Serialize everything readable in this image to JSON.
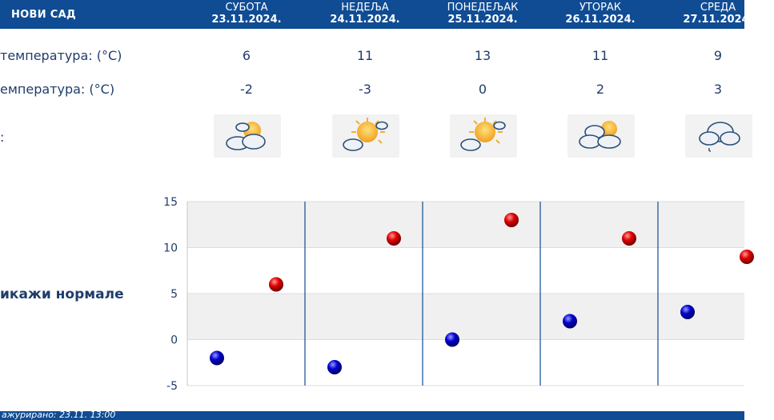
{
  "header": {
    "city": "НОВИ САД",
    "days": [
      {
        "name": "СУБОТА",
        "date": "23.11.2024."
      },
      {
        "name": "НЕДЕЉА",
        "date": "24.11.2024."
      },
      {
        "name": "ПОНЕДЕЉАК",
        "date": "25.11.2024."
      },
      {
        "name": "УТОРАК",
        "date": "26.11.2024."
      },
      {
        "name": "СРЕДА",
        "date": "27.11.2024."
      }
    ]
  },
  "rows": {
    "max_label": "температура: (°C)",
    "min_label": "емпература: (°C)",
    "icon_label": ":",
    "max": [
      "6",
      "11",
      "13",
      "11",
      "9"
    ],
    "min": [
      "-2",
      "-3",
      "0",
      "2",
      "3"
    ],
    "icons": [
      "partly-cloudy-icon",
      "sunny-partly-cloudy-icon",
      "sunny-partly-cloudy-icon",
      "cloudy-sun-icon",
      "cloud-rain-icon"
    ]
  },
  "normals_toggle": "икажи нормале",
  "chart_data": {
    "type": "scatter",
    "categories": [
      "23.11.2024.",
      "24.11.2024.",
      "25.11.2024.",
      "26.11.2024.",
      "27.11.2024."
    ],
    "series": [
      {
        "color": "#cc0000",
        "values": [
          6,
          11,
          13,
          11,
          9
        ]
      },
      {
        "color": "#0000aa",
        "values": [
          -2,
          -3,
          0,
          2,
          3
        ]
      }
    ],
    "ylim": [
      -5,
      15
    ],
    "yticks": [
      "15",
      "10",
      "5",
      "0",
      "-5"
    ],
    "grid": true
  },
  "footer": {
    "updated": "ажурирано: 23.11. 13:00"
  },
  "colors": {
    "header_bg": "#0f4c94",
    "text": "#1f3d6b",
    "max_dot": "#cc0000",
    "min_dot": "#0000aa"
  }
}
